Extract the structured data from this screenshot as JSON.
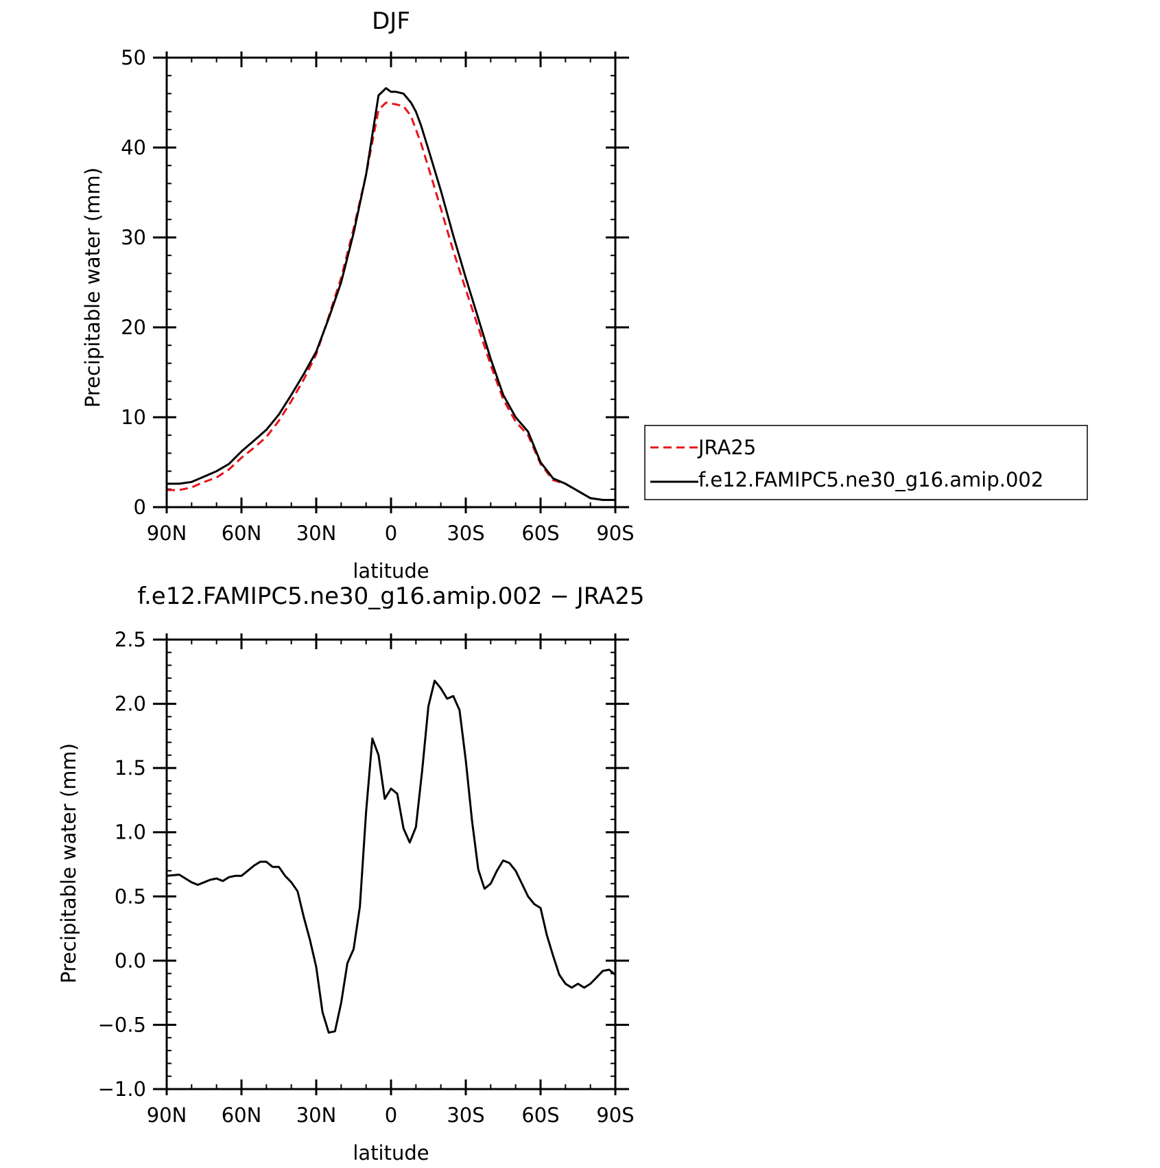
{
  "chart_data": [
    {
      "type": "line",
      "title": "DJF",
      "xlabel": "latitude",
      "ylabel": "Precipitable water (mm)",
      "xlim": [
        90,
        -90
      ],
      "ylim": [
        0,
        50
      ],
      "x_ticks": [
        90,
        60,
        30,
        0,
        -30,
        -60,
        -90
      ],
      "x_tick_labels": [
        "90N",
        "60N",
        "30N",
        "0",
        "30S",
        "60S",
        "90S"
      ],
      "y_ticks": [
        0,
        10,
        20,
        30,
        40,
        50
      ],
      "y_tick_labels": [
        "0",
        "10",
        "20",
        "30",
        "40",
        "50"
      ],
      "legend_position": "right",
      "x": [
        90,
        85,
        80,
        75,
        70,
        65,
        60,
        55,
        50,
        45,
        40,
        35,
        30,
        25,
        20,
        15,
        10,
        5,
        2,
        0,
        -2,
        -5,
        -8,
        -10,
        -12,
        -15,
        -20,
        -25,
        -30,
        -35,
        -40,
        -45,
        -50,
        -55,
        -60,
        -65,
        -70,
        -75,
        -80,
        -85,
        -90
      ],
      "series": [
        {
          "name": "JRA25",
          "color": "#e8141a",
          "dash": "dashed",
          "values": [
            1.9,
            1.9,
            2.2,
            2.8,
            3.3,
            4.2,
            5.5,
            6.6,
            7.8,
            9.6,
            11.8,
            14.2,
            17.0,
            21.2,
            25.5,
            31.0,
            37.0,
            44.2,
            45.0,
            44.9,
            44.8,
            44.6,
            43.5,
            42.0,
            40.5,
            37.8,
            33.2,
            28.5,
            24.2,
            20.0,
            15.8,
            12.0,
            9.5,
            8.0,
            4.8,
            3.0,
            2.6,
            1.8,
            1.0,
            0.8,
            0.8
          ]
        },
        {
          "name": "f.e12.FAMIPC5.ne30_g16.amip.002",
          "color": "#000000",
          "dash": "solid",
          "values": [
            2.6,
            2.6,
            2.8,
            3.4,
            4.0,
            4.8,
            6.2,
            7.4,
            8.6,
            10.3,
            12.5,
            14.8,
            17.3,
            21.0,
            25.0,
            30.5,
            37.0,
            45.8,
            46.6,
            46.2,
            46.2,
            46.0,
            45.0,
            44.0,
            42.5,
            39.8,
            35.2,
            30.2,
            25.5,
            21.0,
            16.5,
            12.5,
            10.0,
            8.4,
            5.0,
            3.2,
            2.6,
            1.8,
            1.0,
            0.8,
            0.8
          ]
        }
      ]
    },
    {
      "type": "line",
      "title": "f.e12.FAMIPC5.ne30_g16.amip.002 − JRA25",
      "xlabel": "latitude",
      "ylabel": "Precipitable water (mm)",
      "xlim": [
        90,
        -90
      ],
      "ylim": [
        -1.0,
        2.5
      ],
      "x_ticks": [
        90,
        60,
        30,
        0,
        -30,
        -60,
        -90
      ],
      "x_tick_labels": [
        "90N",
        "60N",
        "30N",
        "0",
        "30S",
        "60S",
        "90S"
      ],
      "y_ticks": [
        2.5,
        2.0,
        1.5,
        1.0,
        0.5,
        0.0,
        -0.5,
        -1.0
      ],
      "y_tick_labels": [
        "2.5",
        "2.0",
        "1.5",
        "1.0",
        "0.5",
        "0.0",
        "−0.5",
        "−1.0"
      ],
      "x": [
        90,
        85,
        82.5,
        80,
        77.5,
        75,
        72.5,
        70,
        67.5,
        65,
        62.5,
        60,
        57.5,
        55,
        52.5,
        50,
        47.5,
        45,
        42.5,
        40,
        37.5,
        35,
        32.5,
        30,
        27.5,
        25,
        22.5,
        20,
        17.5,
        15,
        12.5,
        10,
        7.5,
        5,
        2.5,
        0,
        -2.5,
        -5,
        -7.5,
        -10,
        -12.5,
        -15,
        -17.5,
        -20,
        -22.5,
        -25,
        -27.5,
        -30,
        -32.5,
        -35,
        -37.5,
        -40,
        -42.5,
        -45,
        -47.5,
        -50,
        -52.5,
        -55,
        -57.5,
        -60,
        -62.5,
        -65,
        -67.5,
        -70,
        -72.5,
        -75,
        -77.5,
        -80,
        -82.5,
        -85,
        -87.5,
        -90
      ],
      "series": [
        {
          "name": "f.e12.FAMIPC5.ne30_g16.amip.002 − JRA25",
          "color": "#000000",
          "dash": "solid",
          "values": [
            0.66,
            0.67,
            0.64,
            0.61,
            0.59,
            0.61,
            0.63,
            0.64,
            0.62,
            0.65,
            0.66,
            0.66,
            0.7,
            0.74,
            0.77,
            0.77,
            0.73,
            0.73,
            0.66,
            0.61,
            0.54,
            0.34,
            0.16,
            -0.05,
            -0.4,
            -0.56,
            -0.55,
            -0.33,
            -0.02,
            0.09,
            0.42,
            1.16,
            1.73,
            1.6,
            1.26,
            1.34,
            1.3,
            1.03,
            0.92,
            1.04,
            1.48,
            1.98,
            2.18,
            2.12,
            2.04,
            2.06,
            1.95,
            1.56,
            1.09,
            0.71,
            0.56,
            0.6,
            0.7,
            0.78,
            0.76,
            0.7,
            0.6,
            0.5,
            0.44,
            0.41,
            0.2,
            0.04,
            -0.11,
            -0.18,
            -0.21,
            -0.18,
            -0.21,
            -0.18,
            -0.13,
            -0.08,
            -0.07,
            -0.11
          ]
        }
      ]
    }
  ]
}
